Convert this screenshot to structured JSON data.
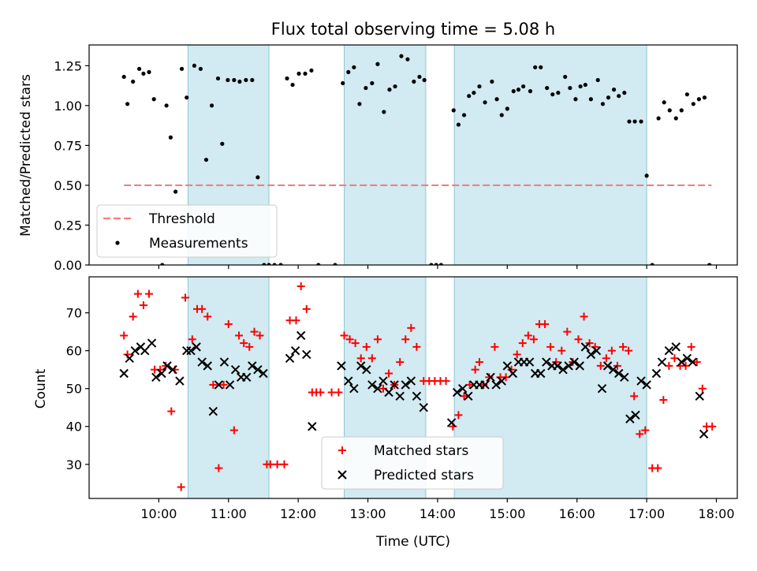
{
  "chart_data": [
    {
      "type": "scatter",
      "title": "Flux total observing time = 5.08 h",
      "xlabel": "",
      "ylabel": "Matched/Predicted stars",
      "xlim": [
        9.0,
        18.3
      ],
      "ylim": [
        0,
        1.38
      ],
      "yticks": [
        0.0,
        0.25,
        0.5,
        0.75,
        1.0,
        1.25
      ],
      "ytick_labels": [
        "0.00",
        "0.25",
        "0.50",
        "0.75",
        "1.00",
        "1.25"
      ],
      "shaded_intervals_hours": [
        [
          10.42,
          11.58
        ],
        [
          12.66,
          13.83
        ],
        [
          14.24,
          17.0
        ]
      ],
      "shade_color": "#add8e6",
      "threshold": {
        "name": "Threshold",
        "y": 0.5,
        "x_range": [
          9.5,
          17.93
        ],
        "color": "#f08080"
      },
      "legend": {
        "position": "lower-left",
        "entries": [
          "Threshold",
          "Measurements"
        ]
      },
      "series": [
        {
          "name": "Measurements",
          "marker": "dot",
          "color": "#000000",
          "x": [
            9.5,
            9.55,
            9.63,
            9.72,
            9.78,
            9.86,
            9.93,
            10.05,
            10.11,
            10.17,
            10.24,
            10.33,
            10.4,
            10.51,
            10.6,
            10.68,
            10.76,
            10.85,
            10.91,
            10.99,
            11.08,
            11.16,
            11.25,
            11.34,
            11.42,
            11.51,
            11.58,
            11.66,
            11.75,
            11.84,
            11.92,
            12.01,
            12.1,
            12.19,
            12.29,
            12.53,
            12.64,
            12.72,
            12.8,
            12.88,
            12.97,
            13.06,
            13.14,
            13.23,
            13.31,
            13.39,
            13.48,
            13.57,
            13.66,
            13.74,
            13.81,
            13.91,
            13.98,
            14.05,
            14.23,
            14.3,
            14.38,
            14.45,
            14.52,
            14.6,
            14.68,
            14.78,
            14.85,
            14.92,
            15.0,
            15.09,
            15.16,
            15.23,
            15.33,
            15.4,
            15.48,
            15.57,
            15.65,
            15.73,
            15.83,
            15.9,
            15.98,
            16.05,
            16.12,
            16.2,
            16.3,
            16.37,
            16.45,
            16.53,
            16.6,
            16.68,
            16.75,
            16.83,
            16.92,
            17.0,
            17.08,
            17.17,
            17.25,
            17.33,
            17.42,
            17.5,
            17.58,
            17.67,
            17.75,
            17.83,
            17.9
          ],
          "y": [
            1.18,
            1.01,
            1.15,
            1.23,
            1.2,
            1.21,
            1.04,
            0.0,
            1.0,
            0.8,
            0.46,
            1.23,
            1.05,
            1.25,
            1.23,
            0.66,
            1.0,
            1.17,
            0.76,
            1.16,
            1.16,
            1.15,
            1.16,
            1.16,
            0.55,
            0.0,
            0.0,
            0.0,
            0.0,
            1.17,
            1.13,
            1.2,
            1.2,
            1.22,
            0.0,
            0.0,
            1.14,
            1.21,
            1.24,
            1.01,
            1.11,
            1.14,
            1.26,
            0.96,
            1.1,
            1.12,
            1.31,
            1.29,
            1.15,
            1.18,
            1.16,
            0.0,
            0.0,
            0.0,
            0.97,
            0.88,
            0.94,
            1.06,
            1.08,
            1.12,
            1.02,
            1.15,
            1.04,
            0.94,
            0.98,
            1.09,
            1.1,
            1.12,
            1.09,
            1.24,
            1.24,
            1.11,
            1.07,
            1.08,
            1.18,
            1.11,
            1.04,
            1.12,
            1.13,
            1.04,
            1.16,
            1.01,
            1.05,
            1.1,
            1.06,
            1.08,
            0.9,
            0.9,
            0.9,
            0.56,
            0.0,
            0.92,
            1.02,
            0.97,
            0.92,
            0.97,
            1.07,
            1.01,
            1.04,
            1.05,
            0.0
          ]
        }
      ]
    },
    {
      "type": "scatter",
      "title": "",
      "xlabel": "Time (UTC)",
      "ylabel": "Count",
      "xlim": [
        9.0,
        18.3
      ],
      "ylim": [
        21,
        79.5
      ],
      "yticks": [
        30,
        40,
        50,
        60,
        70
      ],
      "ytick_labels": [
        "30",
        "40",
        "50",
        "60",
        "70"
      ],
      "xticks": [
        10,
        11,
        12,
        13,
        14,
        15,
        16,
        17,
        18
      ],
      "xtick_labels": [
        "10:00",
        "11:00",
        "12:00",
        "13:00",
        "14:00",
        "15:00",
        "16:00",
        "17:00",
        "18:00"
      ],
      "shaded_intervals_hours": [
        [
          10.42,
          11.58
        ],
        [
          12.66,
          13.83
        ],
        [
          14.24,
          17.0
        ]
      ],
      "shade_color": "#add8e6",
      "legend": {
        "position": "lower-center",
        "entries": [
          "Matched stars",
          "Predicted stars"
        ]
      },
      "series": [
        {
          "name": "Matched stars",
          "marker": "plus",
          "color": "#ff0000",
          "x": [
            9.5,
            9.55,
            9.63,
            9.7,
            9.78,
            9.86,
            9.94,
            10.02,
            10.1,
            10.18,
            10.23,
            10.32,
            10.38,
            10.48,
            10.55,
            10.62,
            10.7,
            10.78,
            10.86,
            10.93,
            11.0,
            11.08,
            11.15,
            11.22,
            11.3,
            11.37,
            11.45,
            11.55,
            11.6,
            11.7,
            11.8,
            11.88,
            11.97,
            12.04,
            12.12,
            12.2,
            12.26,
            12.32,
            12.48,
            12.58,
            12.66,
            12.74,
            12.82,
            12.9,
            12.98,
            13.06,
            13.14,
            13.22,
            13.3,
            13.38,
            13.46,
            13.54,
            13.62,
            13.7,
            13.8,
            13.88,
            13.96,
            14.04,
            14.12,
            14.22,
            14.3,
            14.38,
            14.46,
            14.54,
            14.6,
            14.66,
            14.74,
            14.82,
            14.9,
            14.98,
            15.06,
            15.14,
            15.22,
            15.3,
            15.38,
            15.46,
            15.54,
            15.62,
            15.7,
            15.78,
            15.86,
            15.94,
            16.02,
            16.1,
            16.18,
            16.26,
            16.34,
            16.42,
            16.5,
            16.58,
            16.66,
            16.74,
            16.82,
            16.9,
            16.98,
            17.08,
            17.16,
            17.24,
            17.32,
            17.4,
            17.48,
            17.56,
            17.64,
            17.72,
            17.8,
            17.86,
            17.94
          ],
          "y": [
            64,
            59,
            69,
            75,
            72,
            75,
            55,
            55,
            56,
            44,
            55,
            24,
            74,
            63,
            71,
            71,
            69,
            51,
            29,
            51,
            67,
            39,
            64,
            62,
            61,
            65,
            64,
            30,
            30,
            30,
            30,
            68,
            68,
            77,
            71,
            49,
            49,
            49,
            49,
            49,
            64,
            63,
            62,
            58,
            61,
            58,
            63,
            50,
            54,
            51,
            57,
            63,
            66,
            61,
            52,
            52,
            52,
            52,
            52,
            40,
            43,
            48,
            51,
            55,
            57,
            51,
            53,
            61,
            53,
            53,
            55,
            59,
            62,
            64,
            63,
            67,
            67,
            61,
            57,
            60,
            65,
            57,
            63,
            69,
            62,
            61,
            56,
            58,
            60,
            56,
            61,
            60,
            48,
            38,
            39,
            29,
            29,
            47,
            56,
            58,
            56,
            56,
            61,
            57,
            50,
            40,
            40
          ]
        },
        {
          "name": "Predicted stars",
          "marker": "x",
          "color": "#000000",
          "x": [
            9.5,
            9.58,
            9.66,
            9.74,
            9.8,
            9.9,
            9.96,
            10.04,
            10.12,
            10.2,
            10.3,
            10.4,
            10.46,
            10.54,
            10.62,
            10.7,
            10.78,
            10.86,
            10.94,
            11.02,
            11.1,
            11.18,
            11.26,
            11.34,
            11.42,
            11.5,
            11.88,
            11.96,
            12.04,
            12.12,
            12.2,
            12.62,
            12.72,
            12.8,
            12.9,
            12.98,
            13.06,
            13.14,
            13.22,
            13.3,
            13.38,
            13.46,
            13.54,
            13.62,
            13.7,
            13.8,
            14.2,
            14.28,
            14.36,
            14.44,
            14.52,
            14.6,
            14.68,
            14.76,
            14.84,
            14.92,
            15.0,
            15.08,
            15.16,
            15.24,
            15.32,
            15.4,
            15.48,
            15.56,
            15.64,
            15.72,
            15.8,
            15.88,
            15.96,
            16.04,
            16.12,
            16.2,
            16.28,
            16.36,
            16.44,
            16.52,
            16.6,
            16.68,
            16.76,
            16.84,
            16.92,
            17.0,
            17.14,
            17.22,
            17.32,
            17.42,
            17.5,
            17.58,
            17.66,
            17.76,
            17.82
          ],
          "y": [
            54,
            58,
            60,
            61,
            60,
            62,
            53,
            54,
            56,
            55,
            52,
            60,
            60,
            61,
            57,
            56,
            44,
            51,
            57,
            51,
            55,
            53,
            53,
            56,
            55,
            54,
            58,
            60,
            64,
            59,
            40,
            56,
            52,
            50,
            56,
            55,
            51,
            50,
            52,
            49,
            51,
            48,
            51,
            52,
            48,
            45,
            41,
            49,
            50,
            48,
            51,
            51,
            51,
            53,
            51,
            52,
            56,
            54,
            57,
            57,
            57,
            54,
            54,
            57,
            56,
            56,
            55,
            56,
            57,
            56,
            61,
            59,
            60,
            50,
            56,
            55,
            54,
            53,
            42,
            43,
            52,
            51,
            54,
            57,
            60,
            61,
            57,
            58,
            57,
            48,
            38
          ]
        }
      ]
    }
  ]
}
